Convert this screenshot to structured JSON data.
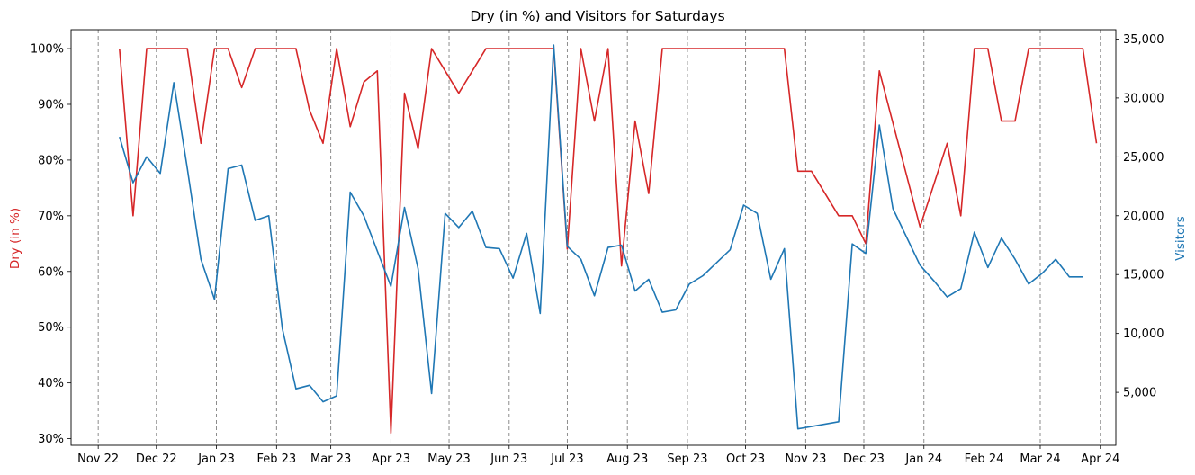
{
  "chart_data": {
    "type": "line",
    "title": "Dry (in %) and Visitors for Saturdays",
    "xlabel": "",
    "x_tick_labels": [
      "Nov 22",
      "Dec 22",
      "Jan 23",
      "Feb 23",
      "Mar 23",
      "Apr 23",
      "May 23",
      "Jun 23",
      "Jul 23",
      "Aug 23",
      "Sep 23",
      "Oct 23",
      "Nov 23",
      "Dec 23",
      "Jan 24",
      "Feb 24",
      "Mar 24",
      "Apr 24"
    ],
    "x_tick_dates": [
      "2022-11-01",
      "2022-12-01",
      "2023-01-01",
      "2023-02-01",
      "2023-03-01",
      "2023-04-01",
      "2023-05-01",
      "2023-06-01",
      "2023-07-01",
      "2023-08-01",
      "2023-09-01",
      "2023-10-01",
      "2023-11-01",
      "2023-12-01",
      "2024-01-01",
      "2024-02-01",
      "2024-03-01",
      "2024-04-01"
    ],
    "xlim": [
      "2022-10-18",
      "2024-04-09"
    ],
    "vertical_gridlines": true,
    "left_axis": {
      "label": "Dry (in %)",
      "color": "#d62728",
      "ticks": [
        30,
        40,
        50,
        60,
        70,
        80,
        90,
        100
      ],
      "tick_labels": [
        "30%",
        "40%",
        "50%",
        "60%",
        "70%",
        "80%",
        "90%",
        "100%"
      ],
      "ylim": [
        28.8,
        103.4
      ]
    },
    "right_axis": {
      "label": "Visitors",
      "color": "#1f77b4",
      "ticks": [
        5000,
        10000,
        15000,
        20000,
        25000,
        30000,
        35000
      ],
      "tick_labels": [
        "5,000",
        "10,000",
        "15,000",
        "20,000",
        "25,000",
        "30,000",
        "35,000"
      ],
      "ylim": [
        500,
        35800
      ]
    },
    "series": [
      {
        "name": "Dry (in %)",
        "axis": "left",
        "color": "#d62728",
        "x": [
          "2022-11-12",
          "2022-11-19",
          "2022-11-26",
          "2022-12-03",
          "2022-12-10",
          "2022-12-17",
          "2022-12-24",
          "2022-12-31",
          "2023-01-07",
          "2023-01-14",
          "2023-01-21",
          "2023-01-28",
          "2023-02-04",
          "2023-02-11",
          "2023-02-18",
          "2023-02-25",
          "2023-03-04",
          "2023-03-11",
          "2023-03-18",
          "2023-03-25",
          "2023-04-01",
          "2023-04-08",
          "2023-04-15",
          "2023-04-22",
          "2023-05-06",
          "2023-05-20",
          "2023-05-27",
          "2023-06-03",
          "2023-06-10",
          "2023-06-17",
          "2023-06-24",
          "2023-07-01",
          "2023-07-08",
          "2023-07-15",
          "2023-07-22",
          "2023-07-29",
          "2023-08-05",
          "2023-08-12",
          "2023-08-19",
          "2023-08-26",
          "2023-09-02",
          "2023-09-09",
          "2023-09-16",
          "2023-09-23",
          "2023-09-30",
          "2023-10-07",
          "2023-10-14",
          "2023-10-21",
          "2023-10-28",
          "2023-11-04",
          "2023-11-18",
          "2023-11-25",
          "2023-12-02",
          "2023-12-09",
          "2023-12-30",
          "2024-01-13",
          "2024-01-20",
          "2024-01-27",
          "2024-02-03",
          "2024-02-10",
          "2024-02-17",
          "2024-02-24",
          "2024-03-02",
          "2024-03-09",
          "2024-03-16",
          "2024-03-23",
          "2024-03-30"
        ],
        "values": [
          100,
          70,
          100,
          100,
          100,
          100,
          83,
          100,
          100,
          93,
          100,
          100,
          100,
          100,
          89,
          83,
          100,
          86,
          94,
          96,
          31,
          92,
          82,
          100,
          92,
          100,
          100,
          100,
          100,
          100,
          100,
          64,
          100,
          87,
          100,
          61,
          87,
          74,
          100,
          100,
          100,
          100,
          100,
          100,
          100,
          100,
          100,
          100,
          78,
          78,
          70,
          70,
          65,
          96,
          68,
          83,
          70,
          100,
          100,
          87,
          87,
          100,
          100,
          100,
          100,
          100,
          83
        ]
      },
      {
        "name": "Visitors",
        "axis": "right",
        "color": "#1f77b4",
        "x": [
          "2022-11-12",
          "2022-11-19",
          "2022-11-26",
          "2022-12-03",
          "2022-12-10",
          "2022-12-17",
          "2022-12-24",
          "2022-12-31",
          "2023-01-07",
          "2023-01-14",
          "2023-01-21",
          "2023-01-28",
          "2023-02-04",
          "2023-02-11",
          "2023-02-18",
          "2023-02-25",
          "2023-03-04",
          "2023-03-11",
          "2023-03-18",
          "2023-03-25",
          "2023-04-01",
          "2023-04-08",
          "2023-04-15",
          "2023-04-22",
          "2023-04-29",
          "2023-05-06",
          "2023-05-13",
          "2023-05-20",
          "2023-05-27",
          "2023-06-03",
          "2023-06-10",
          "2023-06-17",
          "2023-06-24",
          "2023-07-01",
          "2023-07-08",
          "2023-07-15",
          "2023-07-22",
          "2023-07-29",
          "2023-08-05",
          "2023-08-12",
          "2023-08-19",
          "2023-08-26",
          "2023-09-02",
          "2023-09-09",
          "2023-09-16",
          "2023-09-23",
          "2023-09-30",
          "2023-10-07",
          "2023-10-14",
          "2023-10-21",
          "2023-10-28",
          "2023-11-18",
          "2023-11-25",
          "2023-12-02",
          "2023-12-09",
          "2023-12-16",
          "2023-12-30",
          "2024-01-06",
          "2024-01-13",
          "2024-01-20",
          "2024-01-27",
          "2024-02-03",
          "2024-02-10",
          "2024-02-17",
          "2024-02-24",
          "2024-03-02",
          "2024-03-09",
          "2024-03-16",
          "2024-03-23"
        ],
        "values": [
          26700,
          22800,
          25000,
          23600,
          31300,
          24000,
          16300,
          12900,
          24000,
          24300,
          19600,
          20000,
          10400,
          5300,
          5600,
          4200,
          4700,
          22000,
          20000,
          17000,
          14000,
          20700,
          15500,
          4900,
          20200,
          19000,
          20400,
          17300,
          17200,
          14700,
          18500,
          11700,
          34500,
          17400,
          16300,
          13200,
          17300,
          17500,
          13600,
          14600,
          11800,
          12000,
          14200,
          14900,
          16000,
          17100,
          20900,
          20200,
          14600,
          17200,
          1900,
          2500,
          17600,
          16800,
          27700,
          20600,
          15800,
          14500,
          13100,
          13800,
          18600,
          15600,
          18100,
          16300,
          14200,
          15100,
          16300,
          14800,
          14800
        ]
      }
    ]
  }
}
